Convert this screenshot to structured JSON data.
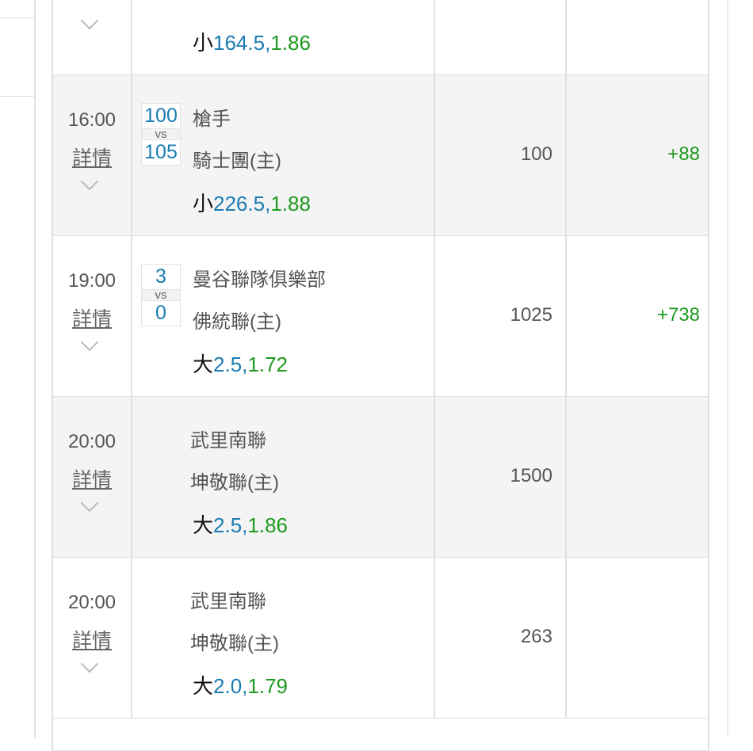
{
  "rows": [
    {
      "time": "",
      "detail": "",
      "team1": "",
      "team2": "",
      "score": null,
      "odds": {
        "type": "小",
        "line": "164.5,",
        "price": "1.86"
      },
      "amount": "",
      "result": "",
      "gray": false
    },
    {
      "time": "16:00",
      "detail": "詳情",
      "team1": "槍手",
      "team2": "騎士團(主)",
      "score": {
        "home": "100",
        "vs": "vs",
        "away": "105"
      },
      "odds": {
        "type": "小",
        "line": "226.5,",
        "price": "1.88"
      },
      "amount": "100",
      "result": "+88",
      "gray": true
    },
    {
      "time": "19:00",
      "detail": "詳情",
      "team1": "曼谷聯隊俱樂部",
      "team2": "佛統聯(主)",
      "score": {
        "home": "3",
        "vs": "vs",
        "away": "0"
      },
      "odds": {
        "type": "大",
        "line": "2.5,",
        "price": "1.72"
      },
      "amount": "1025",
      "result": "+738",
      "gray": false
    },
    {
      "time": "20:00",
      "detail": "詳情",
      "team1": "武里南聯",
      "team2": "坤敬聯(主)",
      "score": null,
      "odds": {
        "type": "大",
        "line": "2.5,",
        "price": "1.86"
      },
      "amount": "1500",
      "result": "",
      "gray": true
    },
    {
      "time": "20:00",
      "detail": "詳情",
      "team1": "武里南聯",
      "team2": "坤敬聯(主)",
      "score": null,
      "odds": {
        "type": "大",
        "line": "2.0,",
        "price": "1.79"
      },
      "amount": "263",
      "result": "",
      "gray": false
    }
  ],
  "colors": {
    "line": "#1b7cb3",
    "price": "#1e9a1e",
    "result": "#1e9a1e",
    "row_alt": "#f4f4f4"
  },
  "icons": {
    "expand": "chevron-down-icon"
  }
}
